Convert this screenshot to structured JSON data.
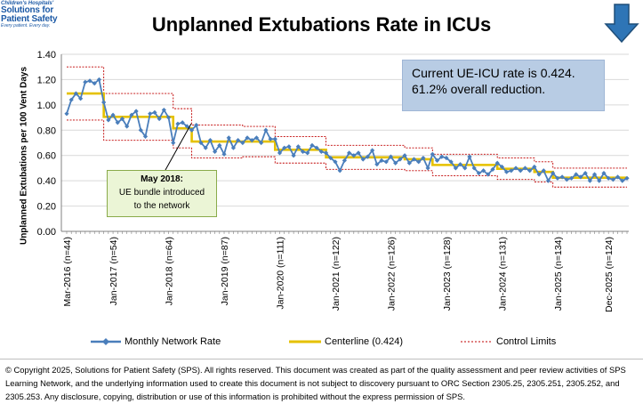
{
  "logo": {
    "top_line": "Children's Hospitals'",
    "main_line_1": "Solutions for",
    "main_line_2": "Patient Safety",
    "tagline": "Every patient. Every day."
  },
  "callout": {
    "line1": "Current UE-ICU rate is 0.424.",
    "line2": "61.2% overall reduction."
  },
  "annotation": {
    "title": "May 2018:",
    "line1": "UE bundle  introduced",
    "line2": "to the network"
  },
  "legend": {
    "rate": "Monthly Network Rate",
    "centerline": "Centerline (0.424)",
    "limits": "Control Limits"
  },
  "footer": "© Copyright 2025, Solutions for Patient Safety (SPS).  All rights reserved.  This document was created as part of the quality assessment and peer review activities of SPS Learning Network, and the underlying information used to create this document is not subject to discovery pursuant to ORC Section 2305.25, 2305.251, 2305.252, and 2305.253. Any disclosure, copying, distribution or use of this information is prohibited without the express permission of SPS.",
  "colors": {
    "rate": "#4a7ebb",
    "centerline": "#e5c100",
    "limits": "#c00000",
    "grid": "#d9d9d9",
    "arrow": "#2e75b6"
  },
  "icons": {
    "trend_arrow": "down-arrow-icon"
  },
  "chart_data": {
    "type": "line",
    "title": "Unplanned Extubations Rate in ICUs",
    "ylabel": "Unplanned  Extubations  per 100 Vent Days",
    "xlabel": "",
    "ylim": [
      0,
      1.4
    ],
    "yticks": [
      "0.00",
      "0.20",
      "0.40",
      "0.60",
      "0.80",
      "1.00",
      "1.20",
      "1.40"
    ],
    "grid": true,
    "legend_position": "bottom",
    "x_tick_labels": [
      {
        "month": 0,
        "label": "Mar-2016 (n=44)"
      },
      {
        "month": 10,
        "label": "Jan-2017 (n=54)"
      },
      {
        "month": 22,
        "label": "Jan-2018 (n=64)"
      },
      {
        "month": 34,
        "label": "Jan-2019 (n=87)"
      },
      {
        "month": 46,
        "label": "Jan-2020 (n=111)"
      },
      {
        "month": 58,
        "label": "Jan-2021 (n=122)"
      },
      {
        "month": 70,
        "label": "Jan-2022 (n=126)"
      },
      {
        "month": 82,
        "label": "Jan-2023 (n=128)"
      },
      {
        "month": 94,
        "label": "Jan-2024 (n=131)"
      },
      {
        "month": 106,
        "label": "Jan-2025 (n=134)"
      },
      {
        "month": 117,
        "label": "Dec-2025 (n=124)"
      }
    ],
    "series": [
      {
        "name": "Monthly Network Rate",
        "start": "Mar-2016",
        "values": [
          0.93,
          1.04,
          1.09,
          1.05,
          1.18,
          1.19,
          1.17,
          1.2,
          1.02,
          0.88,
          0.92,
          0.86,
          0.89,
          0.83,
          0.92,
          0.95,
          0.8,
          0.75,
          0.93,
          0.94,
          0.89,
          0.96,
          0.9,
          0.7,
          0.85,
          0.86,
          0.83,
          0.8,
          0.84,
          0.7,
          0.66,
          0.72,
          0.63,
          0.68,
          0.61,
          0.74,
          0.66,
          0.72,
          0.7,
          0.74,
          0.72,
          0.74,
          0.7,
          0.8,
          0.73,
          0.73,
          0.62,
          0.66,
          0.67,
          0.6,
          0.67,
          0.63,
          0.62,
          0.68,
          0.66,
          0.63,
          0.62,
          0.58,
          0.55,
          0.48,
          0.56,
          0.62,
          0.6,
          0.62,
          0.57,
          0.59,
          0.64,
          0.53,
          0.56,
          0.55,
          0.59,
          0.54,
          0.57,
          0.6,
          0.54,
          0.57,
          0.55,
          0.58,
          0.5,
          0.61,
          0.56,
          0.59,
          0.58,
          0.55,
          0.5,
          0.53,
          0.5,
          0.59,
          0.5,
          0.46,
          0.48,
          0.45,
          0.49,
          0.54,
          0.51,
          0.47,
          0.48,
          0.5,
          0.48,
          0.5,
          0.48,
          0.51,
          0.45,
          0.48,
          0.4,
          0.46,
          0.42,
          0.43,
          0.41,
          0.42,
          0.45,
          0.43,
          0.46,
          0.4,
          0.45,
          0.4,
          0.46,
          0.42,
          0.41,
          0.43,
          0.4,
          0.42
        ]
      },
      {
        "name": "Centerline (0.424)",
        "steps": [
          {
            "from": 0,
            "to": 8,
            "value": 1.09
          },
          {
            "from": 8,
            "to": 17,
            "value": 0.905
          },
          {
            "from": 17,
            "to": 23,
            "value": 0.905
          },
          {
            "from": 23,
            "to": 27,
            "value": 0.815
          },
          {
            "from": 27,
            "to": 38,
            "value": 0.71
          },
          {
            "from": 38,
            "to": 45,
            "value": 0.71
          },
          {
            "from": 45,
            "to": 56,
            "value": 0.645
          },
          {
            "from": 56,
            "to": 73,
            "value": 0.585
          },
          {
            "from": 73,
            "to": 79,
            "value": 0.57
          },
          {
            "from": 79,
            "to": 93,
            "value": 0.525
          },
          {
            "from": 93,
            "to": 101,
            "value": 0.495
          },
          {
            "from": 101,
            "to": 105,
            "value": 0.47
          },
          {
            "from": 105,
            "to": 121,
            "value": 0.424
          }
        ]
      },
      {
        "name": "Control Limits",
        "steps": [
          {
            "from": 0,
            "to": 8,
            "upper": 1.3,
            "lower": 0.88
          },
          {
            "from": 8,
            "to": 17,
            "upper": 1.09,
            "lower": 0.72
          },
          {
            "from": 17,
            "to": 23,
            "upper": 1.09,
            "lower": 0.72
          },
          {
            "from": 23,
            "to": 27,
            "upper": 0.97,
            "lower": 0.66
          },
          {
            "from": 27,
            "to": 38,
            "upper": 0.84,
            "lower": 0.58
          },
          {
            "from": 38,
            "to": 45,
            "upper": 0.83,
            "lower": 0.59
          },
          {
            "from": 45,
            "to": 56,
            "upper": 0.75,
            "lower": 0.54
          },
          {
            "from": 56,
            "to": 73,
            "upper": 0.68,
            "lower": 0.49
          },
          {
            "from": 73,
            "to": 79,
            "upper": 0.66,
            "lower": 0.48
          },
          {
            "from": 79,
            "to": 93,
            "upper": 0.61,
            "lower": 0.44
          },
          {
            "from": 93,
            "to": 101,
            "upper": 0.58,
            "lower": 0.41
          },
          {
            "from": 101,
            "to": 105,
            "upper": 0.55,
            "lower": 0.39
          },
          {
            "from": 105,
            "to": 121,
            "upper": 0.5,
            "lower": 0.35
          }
        ]
      }
    ]
  }
}
